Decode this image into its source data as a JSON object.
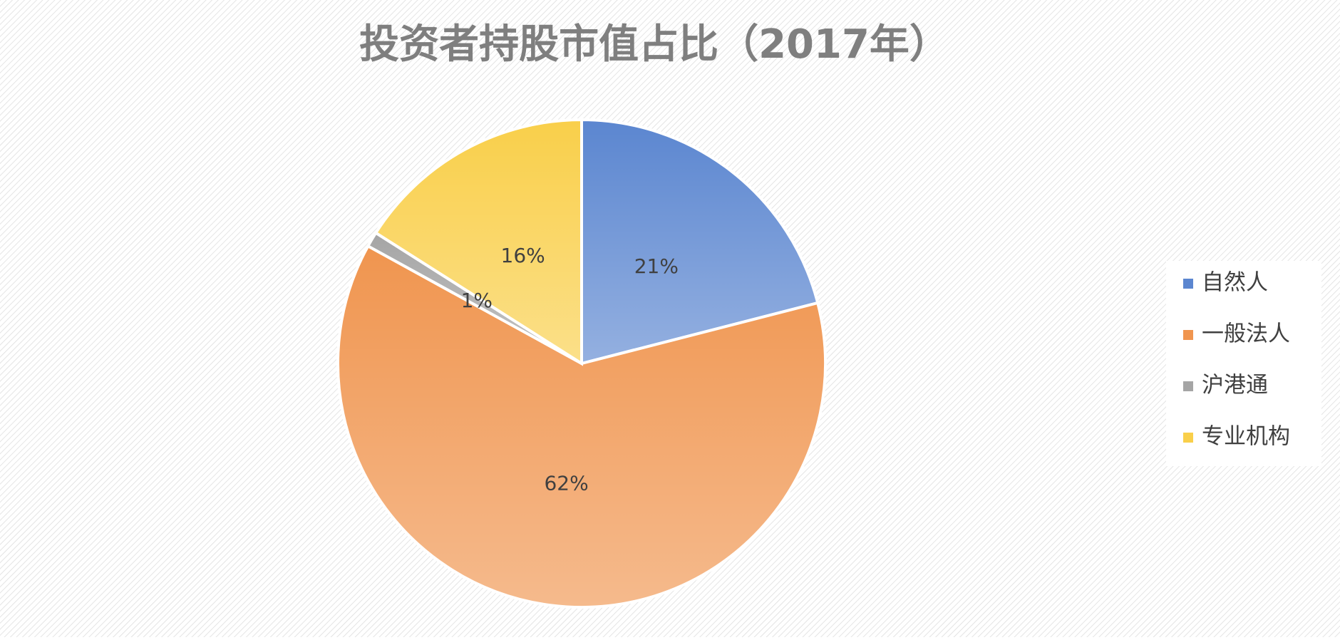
{
  "chart_data": {
    "type": "pie",
    "title": "投资者持股市值占比（2017年）",
    "categories": [
      "自然人",
      "一般法人",
      "沪港通",
      "专业机构"
    ],
    "values": [
      21,
      62,
      1,
      16
    ],
    "value_labels": [
      "21%",
      "62%",
      "1%",
      "16%"
    ],
    "colors": [
      "#5b86d0",
      "#f0954f",
      "#a5a5a5",
      "#f9cf4a"
    ],
    "legend": "right"
  }
}
